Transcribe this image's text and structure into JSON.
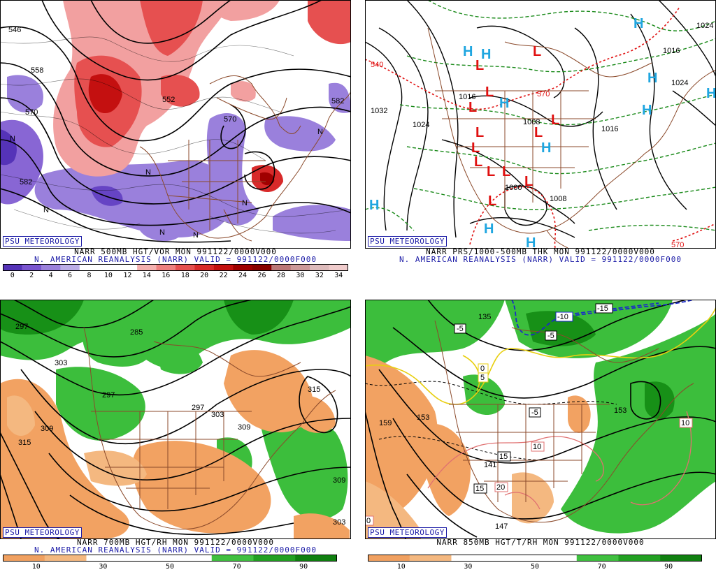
{
  "panels": [
    {
      "id": "p1",
      "brand": "PSU METEOROLOGY",
      "line1": "NARR 500MB HGT/VOR MON 991122/0000V000",
      "line2": "N. AMERICAN REANALYSIS (NARR) VALID = 991122/0000F000",
      "colorbar": {
        "colors": [
          "#5533b8",
          "#7a55d0",
          "#9a80dc",
          "#bcaee8",
          "#ffffff",
          "#ffffff",
          "#ffffff",
          "#f4b0b0",
          "#ee8080",
          "#e65050",
          "#d82a2a",
          "#c41010",
          "#a00000",
          "#880000",
          "#bb7777",
          "#cc9999",
          "#ddbbbb",
          "#f0cccc"
        ],
        "ticks": [
          "0",
          "2",
          "4",
          "6",
          "8",
          "10",
          "12",
          "14",
          "16",
          "18",
          "20",
          "22",
          "24",
          "26",
          "28",
          "30",
          "32",
          "34"
        ]
      },
      "labels": [
        "546",
        "558",
        "570",
        "582",
        "552",
        "570",
        "582",
        "N",
        "N",
        "N",
        "N",
        "N",
        "N",
        "N"
      ]
    },
    {
      "id": "p2",
      "brand": "PSU METEOROLOGY",
      "line1": "NARR PRS/1000-500MB THK MON 991122/0000V000",
      "line2": "N. AMERICAN REANALYSIS (NARR) VALID = 991122/0000F000",
      "labels": [
        "1032",
        "1024",
        "1008",
        "1016",
        "1024",
        "1016",
        "1008",
        "1000",
        "540",
        "570",
        "570",
        "1016",
        "1024"
      ],
      "highs": [
        "H",
        "H",
        "H",
        "H",
        "H",
        "H",
        "H",
        "H",
        "H",
        "H",
        "H"
      ],
      "lows": [
        "L",
        "L",
        "L",
        "L",
        "L",
        "L",
        "L",
        "L",
        "L",
        "L",
        "L",
        "L",
        "L"
      ]
    },
    {
      "id": "p3",
      "brand": "PSU METEOROLOGY",
      "line1": "NARR 700MB HGT/RH MON 991122/0000V000",
      "line2": "N. AMERICAN REANALYSIS (NARR) VALID = 991122/0000F000",
      "colorbar": {
        "colors": [
          "#f0a060",
          "#f4b880",
          "#ffffff",
          "#ffffff",
          "#ffffff",
          "#40c040",
          "#22a022",
          "#108010"
        ],
        "ticks": [
          "10",
          "30",
          "50",
          "70",
          "90"
        ]
      },
      "labels": [
        "297",
        "303",
        "285",
        "297",
        "297",
        "303",
        "309",
        "315",
        "309",
        "315",
        "303",
        "309"
      ]
    },
    {
      "id": "p4",
      "brand": "PSU METEOROLOGY",
      "line1": "NARR 850MB HGT/T/RH MON 991122/0000V000",
      "colorbar": {
        "colors": [
          "#f0a060",
          "#f4b880",
          "#ffffff",
          "#ffffff",
          "#ffffff",
          "#40c040",
          "#22a022",
          "#108010"
        ],
        "ticks": [
          "10",
          "30",
          "50",
          "70",
          "90"
        ]
      },
      "labels": [
        "135",
        "159",
        "153",
        "141",
        "147",
        "153",
        "-5",
        "-5",
        "-5",
        "-10",
        "-15",
        "10",
        "15",
        "20",
        "15",
        "10",
        "0",
        "5",
        "0"
      ]
    }
  ]
}
